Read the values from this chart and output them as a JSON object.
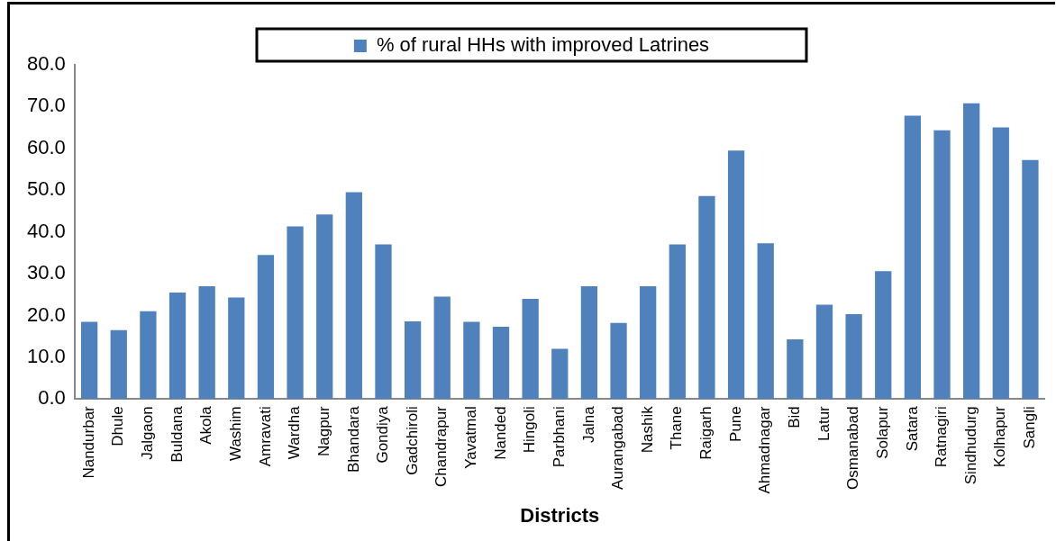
{
  "chart_data": {
    "type": "bar",
    "xlabel": "Districts",
    "categories": [
      "Nandurbar",
      "Dhule",
      "Jalgaon",
      "Buldana",
      "Akola",
      "Washim",
      "Amravati",
      "Wardha",
      "Nagpur",
      "Bhandara",
      "Gondiya",
      "Gadchiroli",
      "Chandrapur",
      "Yavatmal",
      "Nanded",
      "Hingoli",
      "Parbhani",
      "Jalna",
      "Aurangabad",
      "Nashik",
      "Thane",
      "Raigarh",
      "Pune",
      "Ahmadnagar",
      "Bid",
      "Latur",
      "Osmanabad",
      "Solapur",
      "Satara",
      "Ratnagiri",
      "Sindhudurg",
      "Kolhapur",
      "Sangli"
    ],
    "series": [
      {
        "name": "% of rural HHs with improved Latrines",
        "color": "#4f81bd",
        "values": [
          18.5,
          16.5,
          21,
          25.5,
          27,
          24.3,
          34.5,
          41.3,
          44.2,
          49.5,
          37,
          18.6,
          24.5,
          18.5,
          17.3,
          24,
          12,
          27,
          18.2,
          27,
          37,
          48.6,
          59.5,
          37.3,
          14.3,
          22.6,
          20.3,
          30.6,
          67.8,
          64.3,
          70.8,
          65,
          57.2
        ]
      }
    ],
    "ylim": [
      0,
      80
    ],
    "yticks": [
      {
        "value": 0,
        "label": "0.0"
      },
      {
        "value": 10,
        "label": "10.0"
      },
      {
        "value": 20,
        "label": "20.0"
      },
      {
        "value": 30,
        "label": "30.0"
      },
      {
        "value": 40,
        "label": "40.0"
      },
      {
        "value": 50,
        "label": "50.0"
      },
      {
        "value": 60,
        "label": "60.0"
      },
      {
        "value": 70,
        "label": "70.0"
      },
      {
        "value": 80,
        "label": "80.0"
      }
    ],
    "grid": false,
    "legend": "top"
  }
}
